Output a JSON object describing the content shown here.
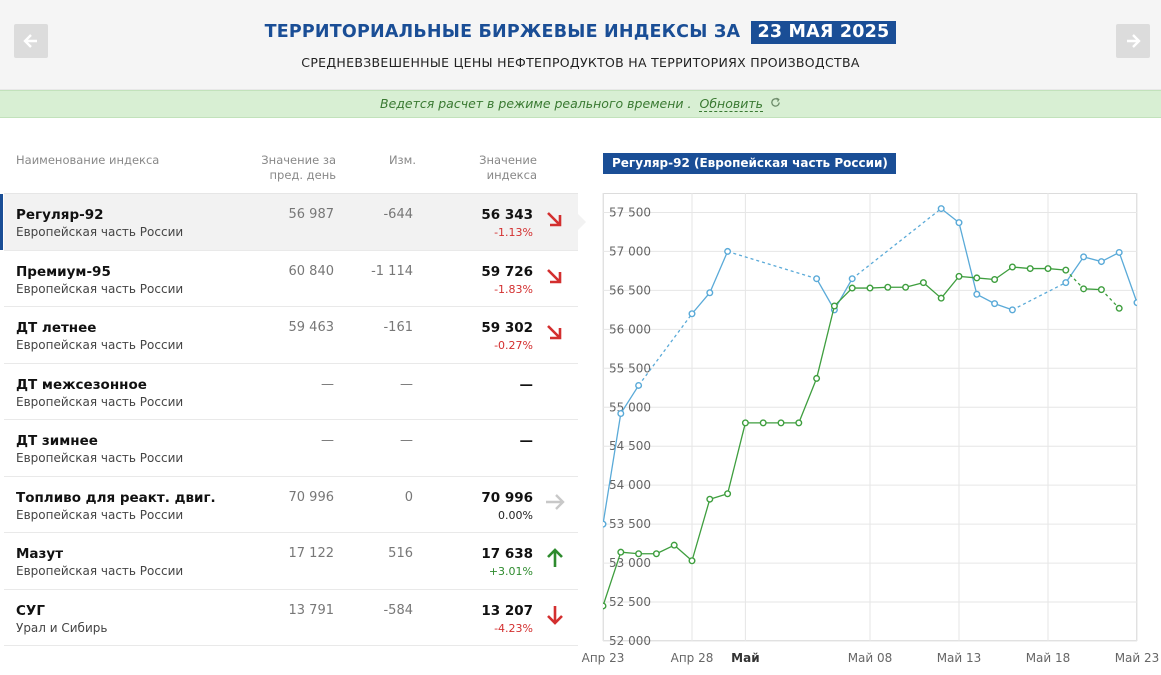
{
  "header": {
    "title": "ТЕРРИТОРИАЛЬНЫЕ БИРЖЕВЫЕ ИНДЕКСЫ ЗА",
    "date": "23 МАЯ 2025",
    "subtitle": "СРЕДНЕВЗВЕШЕННЫЕ ЦЕНЫ НЕФТЕПРОДУКТОВ НА ТЕРРИТОРИЯХ ПРОИЗВОДСТВА",
    "prev_icon": "arrow-left-icon",
    "next_icon": "arrow-right-icon"
  },
  "status": {
    "text": "Ведется расчет в режиме реального времени .",
    "refresh_label": "Обновить",
    "refresh_icon": "refresh-icon"
  },
  "table": {
    "col_name": "Наименование индекса",
    "col_prev": "Значение за пред. день",
    "col_change": "Изм.",
    "col_value": "Значение индекса",
    "rows": [
      {
        "name": "Регуляр-92",
        "region": "Европейская часть России",
        "prev": "56 987",
        "change": "-644",
        "value": "56 343",
        "pct": "-1.13%",
        "trend": "down-right"
      },
      {
        "name": "Премиум-95",
        "region": "Европейская часть России",
        "prev": "60 840",
        "change": "-1 114",
        "value": "59 726",
        "pct": "-1.83%",
        "trend": "down-right"
      },
      {
        "name": "ДТ летнее",
        "region": "Европейская часть России",
        "prev": "59 463",
        "change": "-161",
        "value": "59 302",
        "pct": "-0.27%",
        "trend": "down-right"
      },
      {
        "name": "ДТ межсезонное",
        "region": "Европейская часть России",
        "prev": "—",
        "change": "—",
        "value": "—",
        "pct": "",
        "trend": "none"
      },
      {
        "name": "ДТ зимнее",
        "region": "Европейская часть России",
        "prev": "—",
        "change": "—",
        "value": "—",
        "pct": "",
        "trend": "none"
      },
      {
        "name": "Топливо для реакт. двиг.",
        "region": "Европейская часть России",
        "prev": "70 996",
        "change": "0",
        "value": "70 996",
        "pct": "0.00%",
        "trend": "flat"
      },
      {
        "name": "Мазут",
        "region": "Европейская часть России",
        "prev": "17 122",
        "change": "516",
        "value": "17 638",
        "pct": "+3.01%",
        "trend": "up"
      },
      {
        "name": "СУГ",
        "region": "Урал и Сибирь",
        "prev": "13 791",
        "change": "-584",
        "value": "13 207",
        "pct": "-4.23%",
        "trend": "down"
      }
    ]
  },
  "colors": {
    "brand": "#1a4e96",
    "down": "#d32f2f",
    "up": "#2e8b2e",
    "flat": "#c8c8c8",
    "series_blue": "#5aaad8",
    "series_green": "#3e9e3e"
  },
  "chart_data": {
    "type": "line",
    "title": "Регуляр-92 (Европейская часть России)",
    "xlabel": "",
    "ylabel": "",
    "ylim": [
      52000,
      57750
    ],
    "yticks": [
      52000,
      52500,
      53000,
      53500,
      54000,
      54500,
      55000,
      55500,
      56000,
      56500,
      57000,
      57500
    ],
    "ytick_labels": [
      "52 000",
      "52 500",
      "53 000",
      "53 500",
      "54 000",
      "54 500",
      "55 000",
      "55 500",
      "56 000",
      "56 500",
      "57 000",
      "57 500"
    ],
    "xlim": [
      "2025-04-23",
      "2025-05-23"
    ],
    "xticks": [
      "2025-04-23",
      "2025-04-28",
      "2025-05-01",
      "2025-05-08",
      "2025-05-13",
      "2025-05-18",
      "2025-05-23"
    ],
    "xtick_labels": [
      "Апр 23",
      "Апр 28",
      "Май",
      "Май 08",
      "Май 13",
      "Май 18",
      "Май 23"
    ],
    "grid": true,
    "legend": "none",
    "series": [
      {
        "points": [
          {
            "x": "2025-04-23",
            "y": 53500,
            "gap": false
          },
          {
            "x": "2025-04-24",
            "y": 54920,
            "gap": false
          },
          {
            "x": "2025-04-25",
            "y": 55280,
            "gap": false
          },
          {
            "x": "2025-04-28",
            "y": 56200,
            "gap": true
          },
          {
            "x": "2025-04-29",
            "y": 56470,
            "gap": false
          },
          {
            "x": "2025-04-30",
            "y": 57000,
            "gap": false
          },
          {
            "x": "2025-05-05",
            "y": 56650,
            "gap": true
          },
          {
            "x": "2025-05-06",
            "y": 56250,
            "gap": false
          },
          {
            "x": "2025-05-07",
            "y": 56650,
            "gap": false
          },
          {
            "x": "2025-05-12",
            "y": 57550,
            "gap": true
          },
          {
            "x": "2025-05-13",
            "y": 57370,
            "gap": false
          },
          {
            "x": "2025-05-14",
            "y": 56450,
            "gap": false
          },
          {
            "x": "2025-05-15",
            "y": 56330,
            "gap": false
          },
          {
            "x": "2025-05-16",
            "y": 56250,
            "gap": false
          },
          {
            "x": "2025-05-19",
            "y": 56600,
            "gap": true
          },
          {
            "x": "2025-05-20",
            "y": 56930,
            "gap": false
          },
          {
            "x": "2025-05-21",
            "y": 56870,
            "gap": false
          },
          {
            "x": "2025-05-22",
            "y": 56987,
            "gap": false
          },
          {
            "x": "2025-05-23",
            "y": 56343,
            "gap": false
          }
        ]
      },
      {
        "points": [
          {
            "x": "2025-04-23",
            "y": 52450,
            "gap": false
          },
          {
            "x": "2025-04-24",
            "y": 53140,
            "gap": false
          },
          {
            "x": "2025-04-25",
            "y": 53120,
            "gap": false
          },
          {
            "x": "2025-04-26",
            "y": 53120,
            "gap": false
          },
          {
            "x": "2025-04-27",
            "y": 53230,
            "gap": false
          },
          {
            "x": "2025-04-28",
            "y": 53030,
            "gap": false
          },
          {
            "x": "2025-04-29",
            "y": 53820,
            "gap": false
          },
          {
            "x": "2025-04-30",
            "y": 53890,
            "gap": false
          },
          {
            "x": "2025-05-01",
            "y": 54800,
            "gap": false
          },
          {
            "x": "2025-05-02",
            "y": 54800,
            "gap": false
          },
          {
            "x": "2025-05-03",
            "y": 54800,
            "gap": false
          },
          {
            "x": "2025-05-04",
            "y": 54800,
            "gap": false
          },
          {
            "x": "2025-05-05",
            "y": 55370,
            "gap": false
          },
          {
            "x": "2025-05-06",
            "y": 56300,
            "gap": false
          },
          {
            "x": "2025-05-07",
            "y": 56530,
            "gap": false
          },
          {
            "x": "2025-05-08",
            "y": 56530,
            "gap": false
          },
          {
            "x": "2025-05-09",
            "y": 56540,
            "gap": false
          },
          {
            "x": "2025-05-10",
            "y": 56540,
            "gap": false
          },
          {
            "x": "2025-05-11",
            "y": 56600,
            "gap": false
          },
          {
            "x": "2025-05-12",
            "y": 56400,
            "gap": false
          },
          {
            "x": "2025-05-13",
            "y": 56680,
            "gap": false
          },
          {
            "x": "2025-05-14",
            "y": 56660,
            "gap": false
          },
          {
            "x": "2025-05-15",
            "y": 56640,
            "gap": false
          },
          {
            "x": "2025-05-16",
            "y": 56800,
            "gap": false
          },
          {
            "x": "2025-05-17",
            "y": 56780,
            "gap": false
          },
          {
            "x": "2025-05-18",
            "y": 56780,
            "gap": false
          },
          {
            "x": "2025-05-19",
            "y": 56760,
            "gap": false
          },
          {
            "x": "2025-05-20",
            "y": 56520,
            "gap": true
          },
          {
            "x": "2025-05-21",
            "y": 56510,
            "gap": false
          },
          {
            "x": "2025-05-22",
            "y": 56270,
            "gap": true
          }
        ]
      }
    ]
  }
}
